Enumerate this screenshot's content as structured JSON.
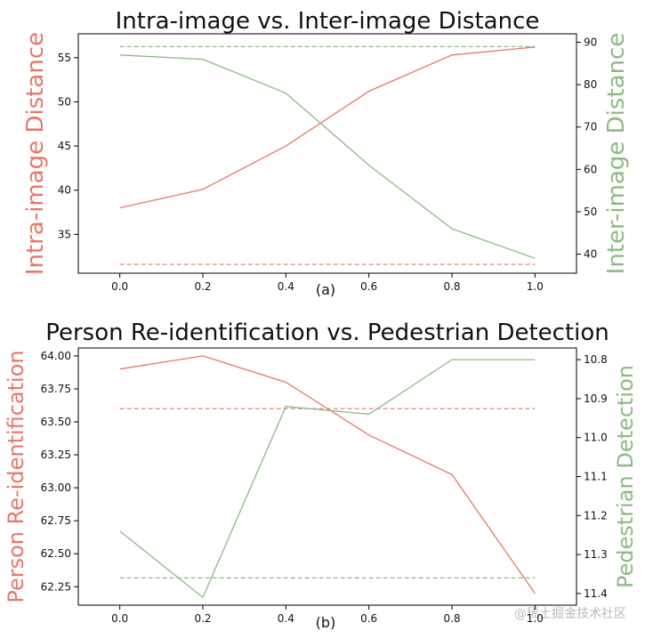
{
  "colors": {
    "left": "#e8776b",
    "right": "#8dba84"
  },
  "watermark": "@稀土掘金技术社区",
  "chart_data": [
    {
      "type": "line",
      "title": "Intra-image vs. Inter-image Distance",
      "caption": "(a)",
      "xlabel": "",
      "ylabel_left": "Intra-image Distance",
      "ylabel_right": "Inter-image Distance",
      "x": [
        0.0,
        0.2,
        0.4,
        0.6,
        0.8,
        1.0
      ],
      "x_ticks": [
        "0.0",
        "0.2",
        "0.4",
        "0.6",
        "0.8",
        "1.0"
      ],
      "xlim": [
        -0.1,
        1.1
      ],
      "ylim_left": [
        30.6,
        57.7
      ],
      "ylim_right": [
        35.5,
        92.0
      ],
      "yticks_left": [
        "35",
        "40",
        "45",
        "50",
        "55"
      ],
      "yticks_right": [
        "40",
        "50",
        "60",
        "70",
        "80",
        "90"
      ],
      "right_inverted": false,
      "series": [
        {
          "axis": "left",
          "values": [
            38.0,
            40.1,
            45.0,
            51.2,
            55.3,
            56.2
          ],
          "baseline": 31.6
        },
        {
          "axis": "right",
          "values": [
            87.0,
            86.0,
            78.0,
            61.0,
            46.0,
            39.0
          ],
          "baseline": 89.0
        }
      ]
    },
    {
      "type": "line",
      "title": "Person Re-identification vs. Pedestrian Detection",
      "caption": "(b)",
      "xlabel": "",
      "ylabel_left": "Person Re-identification",
      "ylabel_right": "Pedestrian Detection",
      "x": [
        0.0,
        0.2,
        0.4,
        0.6,
        0.8,
        1.0
      ],
      "x_ticks": [
        "0.0",
        "0.2",
        "0.4",
        "0.6",
        "0.8",
        "1.0"
      ],
      "xlim": [
        -0.1,
        1.1
      ],
      "ylim_left": [
        62.11,
        64.06
      ],
      "ylim_right": [
        10.77,
        11.43
      ],
      "yticks_left": [
        "64.00",
        "63.75",
        "63.50",
        "63.25",
        "63.00",
        "62.75",
        "62.50",
        "62.25"
      ],
      "yticks_right": [
        "10.8",
        "10.9",
        "11.0",
        "11.1",
        "11.2",
        "11.3",
        "11.4"
      ],
      "right_inverted": true,
      "series": [
        {
          "axis": "left",
          "values": [
            63.9,
            64.0,
            63.8,
            63.4,
            63.1,
            62.2
          ],
          "baseline": 63.6
        },
        {
          "axis": "right",
          "values": [
            11.24,
            11.41,
            10.92,
            10.94,
            10.8,
            10.8
          ],
          "baseline": 11.36
        }
      ]
    }
  ]
}
